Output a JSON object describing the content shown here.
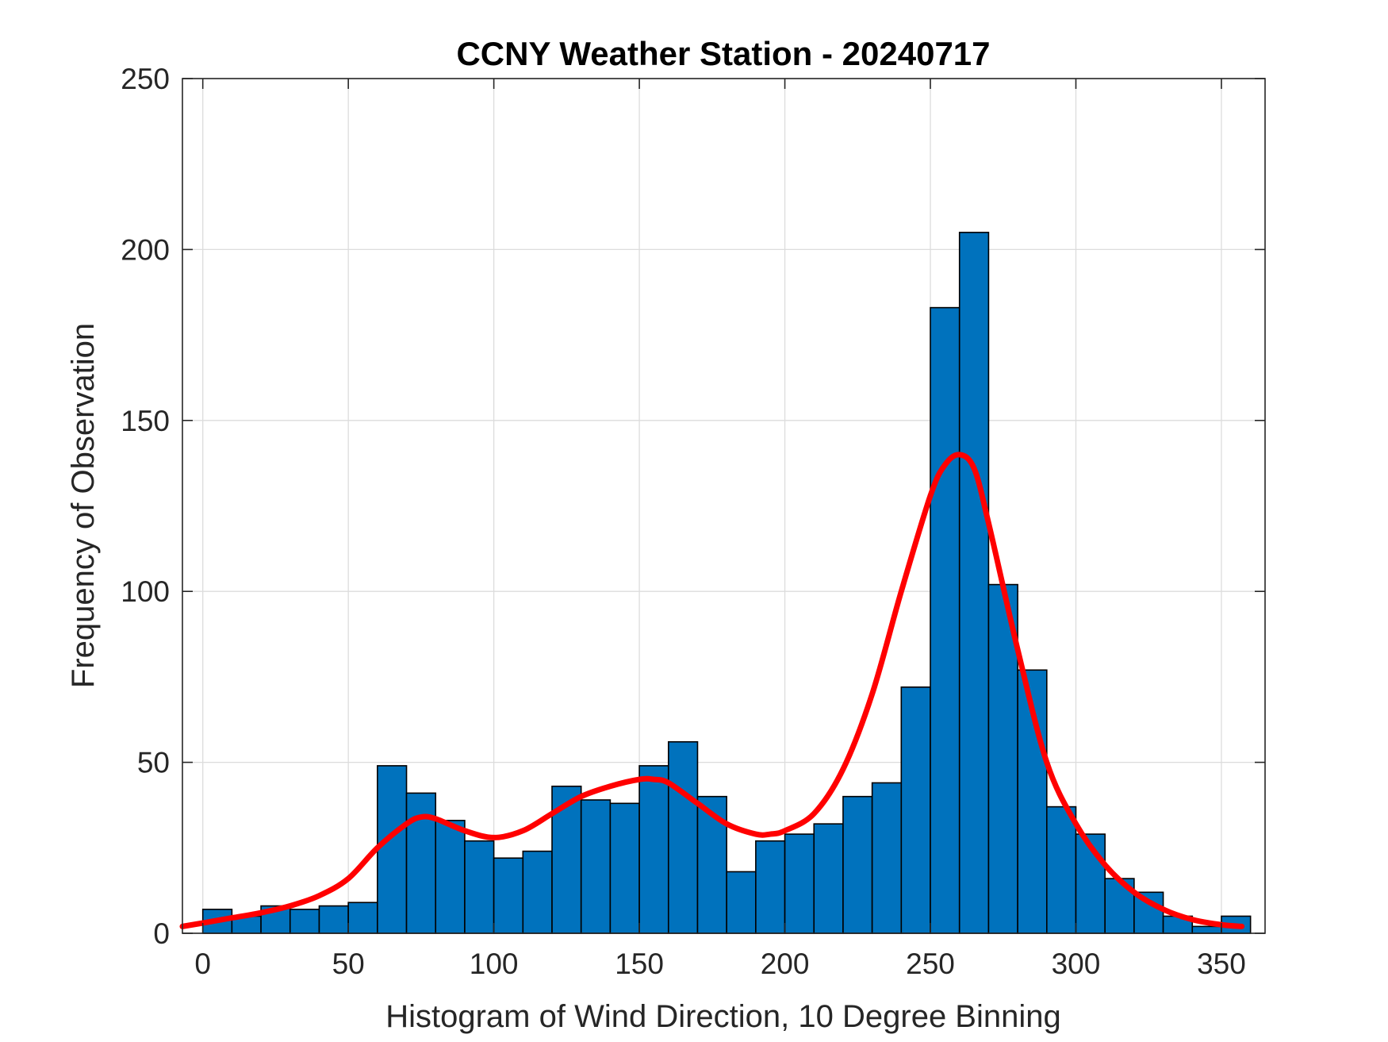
{
  "chart_data": {
    "type": "bar",
    "title": "CCNY Weather Station - 20240717",
    "xlabel": "Histogram of Wind Direction, 10 Degree Binning",
    "ylabel": "Frequency of Observation",
    "xlim": [
      -7,
      365
    ],
    "ylim": [
      0,
      250
    ],
    "grid": true,
    "xticks": [
      0,
      50,
      100,
      150,
      200,
      250,
      300,
      350
    ],
    "yticks": [
      0,
      50,
      100,
      150,
      200,
      250
    ],
    "bin_width": 10,
    "bin_edges": [
      0,
      10,
      20,
      30,
      40,
      50,
      60,
      70,
      80,
      90,
      100,
      110,
      120,
      130,
      140,
      150,
      160,
      170,
      180,
      190,
      200,
      210,
      220,
      230,
      240,
      250,
      260,
      270,
      280,
      290,
      300,
      310,
      320,
      330,
      340,
      350,
      360
    ],
    "values": [
      7,
      5,
      8,
      7,
      8,
      9,
      49,
      41,
      33,
      27,
      22,
      24,
      43,
      39,
      38,
      49,
      56,
      40,
      18,
      27,
      29,
      32,
      40,
      44,
      72,
      183,
      205,
      102,
      77,
      37,
      29,
      16,
      12,
      5,
      2,
      5
    ],
    "bar_color": "#0072BD",
    "bar_edge_color": "#000000",
    "fit_curve": {
      "color": "#FF0000",
      "x": [
        -7,
        0,
        10,
        20,
        30,
        40,
        50,
        60,
        70,
        75,
        80,
        90,
        100,
        110,
        120,
        130,
        140,
        150,
        155,
        160,
        170,
        180,
        190,
        195,
        200,
        210,
        220,
        230,
        240,
        250,
        255,
        260,
        265,
        270,
        280,
        290,
        300,
        310,
        320,
        330,
        340,
        350,
        357
      ],
      "y": [
        2,
        3,
        4.5,
        6,
        8,
        11,
        16,
        25,
        32,
        34,
        33.5,
        30,
        28,
        30,
        35,
        40,
        43,
        45,
        45,
        44,
        38,
        32,
        29,
        29,
        30,
        35,
        48,
        70,
        100,
        128,
        137,
        140,
        136,
        120,
        83,
        50,
        32,
        20,
        12,
        7,
        4,
        2.5,
        2
      ]
    }
  }
}
